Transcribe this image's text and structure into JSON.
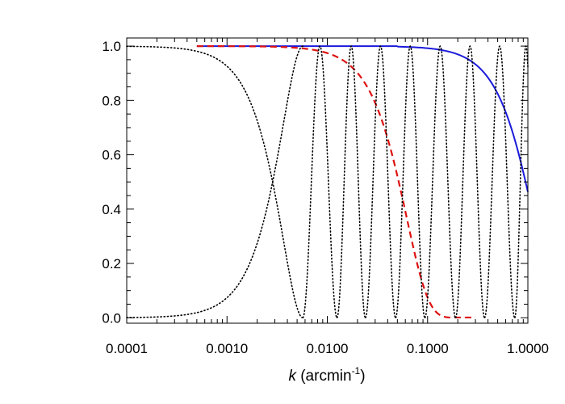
{
  "chart_data": {
    "type": "line",
    "title": "",
    "xscale": "log",
    "xlim": [
      0.0001,
      1.0
    ],
    "ylim": [
      -0.02,
      1.03
    ],
    "x_ticks": [
      0.0001,
      0.001,
      0.01,
      0.1,
      1.0
    ],
    "x_tick_labels": [
      "0.0001",
      "0.0010",
      "0.0100",
      "0.1000",
      "1.0000"
    ],
    "y_ticks": [
      0.0,
      0.2,
      0.4,
      0.6,
      0.8,
      1.0
    ],
    "y_tick_labels": [
      "0.0",
      "0.2",
      "0.4",
      "0.6",
      "0.8",
      "1.0"
    ],
    "xlabel": {
      "var": "k",
      "unit_pre": " (arcmin",
      "unit_sup": "-1",
      "unit_post": ")"
    },
    "ylabel": "",
    "grid": false,
    "legend": "none",
    "series": [
      {
        "name": "solid-blue",
        "style": "solid",
        "color": "#1a1adb",
        "x_range": [
          0.0005,
          1.0
        ],
        "model": "gaussian",
        "scale": 0.82
      },
      {
        "name": "dashed-red",
        "style": "dashed",
        "color": "#dd1111",
        "x_range": [
          0.0005,
          0.3
        ],
        "model": "gaussian",
        "scale": 0.062
      },
      {
        "name": "dotted-rising",
        "style": "dotted",
        "color": "#000000",
        "x_range": [
          0.0001,
          0.0057
        ],
        "model": "sin2",
        "pi_at": 0.0057
      },
      {
        "name": "dotted-falling",
        "style": "dotted",
        "color": "#000000",
        "x_range": [
          0.0001,
          0.0057
        ],
        "model": "cos2",
        "pi_at": 0.0057
      },
      {
        "name": "dotted-oscillation-1",
        "style": "dotted",
        "color": "#000000",
        "x_range": [
          0.0057,
          0.0125
        ],
        "model": "cos2_lobe",
        "center": 0.0096
      },
      {
        "name": "dotted-oscillation-2",
        "style": "dotted",
        "color": "#000000",
        "x_range": [
          0.0125,
          0.024
        ],
        "model": "sin2_lobe"
      },
      {
        "name": "dotted-oscillation-3",
        "style": "dotted",
        "color": "#000000",
        "x_range": [
          0.024,
          0.048
        ],
        "model": "sin2_lobe"
      },
      {
        "name": "dotted-oscillation-4",
        "style": "dotted",
        "color": "#000000",
        "x_range": [
          0.048,
          0.094
        ],
        "model": "sin2_lobe"
      },
      {
        "name": "dotted-oscillation-5",
        "style": "dotted",
        "color": "#000000",
        "x_range": [
          0.094,
          0.19
        ],
        "model": "sin2_lobe"
      },
      {
        "name": "dotted-oscillation-6",
        "style": "dotted",
        "color": "#000000",
        "x_range": [
          0.19,
          0.37
        ],
        "model": "sin2_lobe"
      },
      {
        "name": "dotted-oscillation-7",
        "style": "dotted",
        "color": "#000000",
        "x_range": [
          0.37,
          0.74
        ],
        "model": "sin2_lobe"
      },
      {
        "name": "dotted-oscillation-8",
        "style": "dotted",
        "color": "#000000",
        "x_range": [
          0.74,
          1.0
        ],
        "model": "sin2_lobe_partial"
      }
    ]
  }
}
